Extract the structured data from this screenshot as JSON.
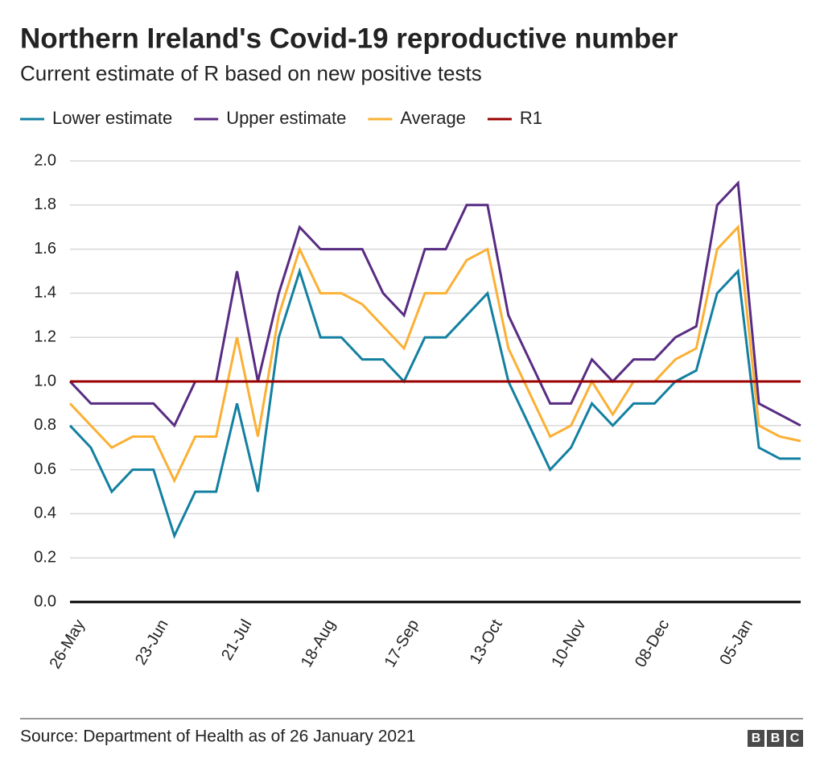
{
  "chart_data": {
    "type": "line",
    "title": "Northern Ireland's Covid-19 reproductive number",
    "subtitle": "Current estimate of R based on new positive tests",
    "categories": [
      "26-May",
      null,
      null,
      null,
      "23-Jun",
      null,
      null,
      null,
      "21-Jul",
      null,
      null,
      null,
      "18-Aug",
      null,
      null,
      null,
      "17-Sep",
      null,
      null,
      null,
      "13-Oct",
      null,
      null,
      null,
      "10-Nov",
      null,
      null,
      null,
      "08-Dec",
      null,
      null,
      null,
      "05-Jan",
      null,
      null,
      null
    ],
    "series": [
      {
        "name": "Lower estimate",
        "color": "#1380a1",
        "values": [
          0.8,
          0.7,
          0.5,
          0.6,
          0.6,
          0.3,
          0.5,
          0.5,
          0.9,
          0.5,
          1.2,
          1.5,
          1.2,
          1.2,
          1.1,
          1.1,
          1.0,
          1.2,
          1.2,
          1.3,
          1.4,
          1.0,
          0.8,
          0.6,
          0.7,
          0.9,
          0.8,
          0.9,
          0.9,
          1.0,
          1.05,
          1.4,
          1.5,
          0.7,
          0.65,
          0.65
        ]
      },
      {
        "name": "Upper estimate",
        "color": "#582c83",
        "values": [
          1.0,
          0.9,
          0.9,
          0.9,
          0.9,
          0.8,
          1.0,
          1.0,
          1.5,
          1.0,
          1.4,
          1.7,
          1.6,
          1.6,
          1.6,
          1.4,
          1.3,
          1.6,
          1.6,
          1.8,
          1.8,
          1.3,
          1.1,
          0.9,
          0.9,
          1.1,
          1.0,
          1.1,
          1.1,
          1.2,
          1.25,
          1.8,
          1.9,
          0.9,
          0.85,
          0.8
        ]
      },
      {
        "name": "Average",
        "color": "#fbb034",
        "values": [
          0.9,
          0.8,
          0.7,
          0.75,
          0.75,
          0.55,
          0.75,
          0.75,
          1.2,
          0.75,
          1.3,
          1.6,
          1.4,
          1.4,
          1.35,
          1.25,
          1.15,
          1.4,
          1.4,
          1.55,
          1.6,
          1.15,
          0.95,
          0.75,
          0.8,
          1.0,
          0.85,
          1.0,
          1.0,
          1.1,
          1.15,
          1.6,
          1.7,
          0.8,
          0.75,
          0.73
        ]
      }
    ],
    "reference_lines": [
      {
        "name": "R1",
        "value": 1,
        "color": "#990000"
      }
    ],
    "ylim": [
      0,
      2
    ],
    "yticks": [
      {
        "value": 0,
        "label": "0.0"
      },
      0.2,
      0.4,
      0.6,
      0.8,
      {
        "value": 1,
        "label": "1.0"
      },
      1.2,
      1.4,
      1.6,
      1.8,
      {
        "value": 2,
        "label": "2.0"
      }
    ],
    "grid": true,
    "source": "Source: Department of Health as of 26 January 2021",
    "logo": [
      "B",
      "B",
      "C"
    ]
  }
}
